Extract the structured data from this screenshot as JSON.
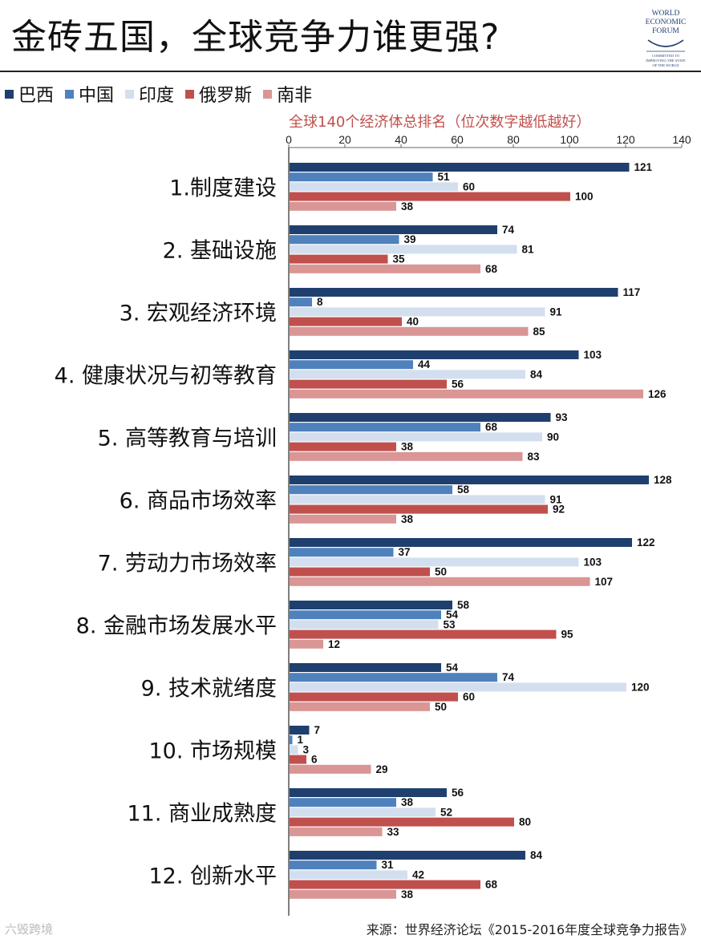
{
  "title": "金砖五国，全球竞争力谁更强?",
  "logo": {
    "line1": "WORLD",
    "line2": "ECONOMIC",
    "line3": "FORUM",
    "tag1": "COMMITTED TO",
    "tag2": "IMPROVING THE STATE",
    "tag3": "OF THE WORLD"
  },
  "colors": {
    "巴西": "#1f3f6e",
    "中国": "#4f81bd",
    "印度": "#d3dfef",
    "俄罗斯": "#c0504d",
    "南非": "#d99694"
  },
  "source": "来源：世界经济论坛《2015-2016年度全球竞争力报告》",
  "watermark": "六毁跨境",
  "chart_data": {
    "type": "bar",
    "orientation": "horizontal",
    "subtitle": "全球140个经济体总排名（位次数字越低越好）",
    "xlim": [
      0,
      140
    ],
    "xticks": [
      0,
      20,
      40,
      60,
      80,
      100,
      120,
      140
    ],
    "x_axis_position": "top",
    "legend_position": "top-left",
    "grid": false,
    "categories": [
      "1.制度建设",
      "2. 基础设施",
      "3. 宏观经济环境",
      "4. 健康状况与初等教育",
      "5. 高等教育与培训",
      "6. 商品市场效率",
      "7. 劳动力市场效率",
      "8. 金融市场发展水平",
      "9. 技术就绪度",
      "10. 市场规模",
      "11. 商业成熟度",
      "12. 创新水平"
    ],
    "series": [
      {
        "name": "巴西",
        "values": [
          121,
          74,
          117,
          103,
          93,
          128,
          122,
          58,
          54,
          7,
          56,
          84
        ]
      },
      {
        "name": "中国",
        "values": [
          51,
          39,
          8,
          44,
          68,
          58,
          37,
          54,
          74,
          1,
          38,
          31
        ]
      },
      {
        "name": "印度",
        "values": [
          60,
          81,
          91,
          84,
          90,
          91,
          103,
          53,
          120,
          3,
          52,
          42
        ]
      },
      {
        "name": "俄罗斯",
        "values": [
          100,
          35,
          40,
          56,
          38,
          92,
          50,
          95,
          60,
          6,
          80,
          68
        ]
      },
      {
        "name": "南非",
        "values": [
          38,
          68,
          85,
          126,
          83,
          38,
          107,
          12,
          50,
          29,
          33,
          38
        ]
      }
    ]
  }
}
